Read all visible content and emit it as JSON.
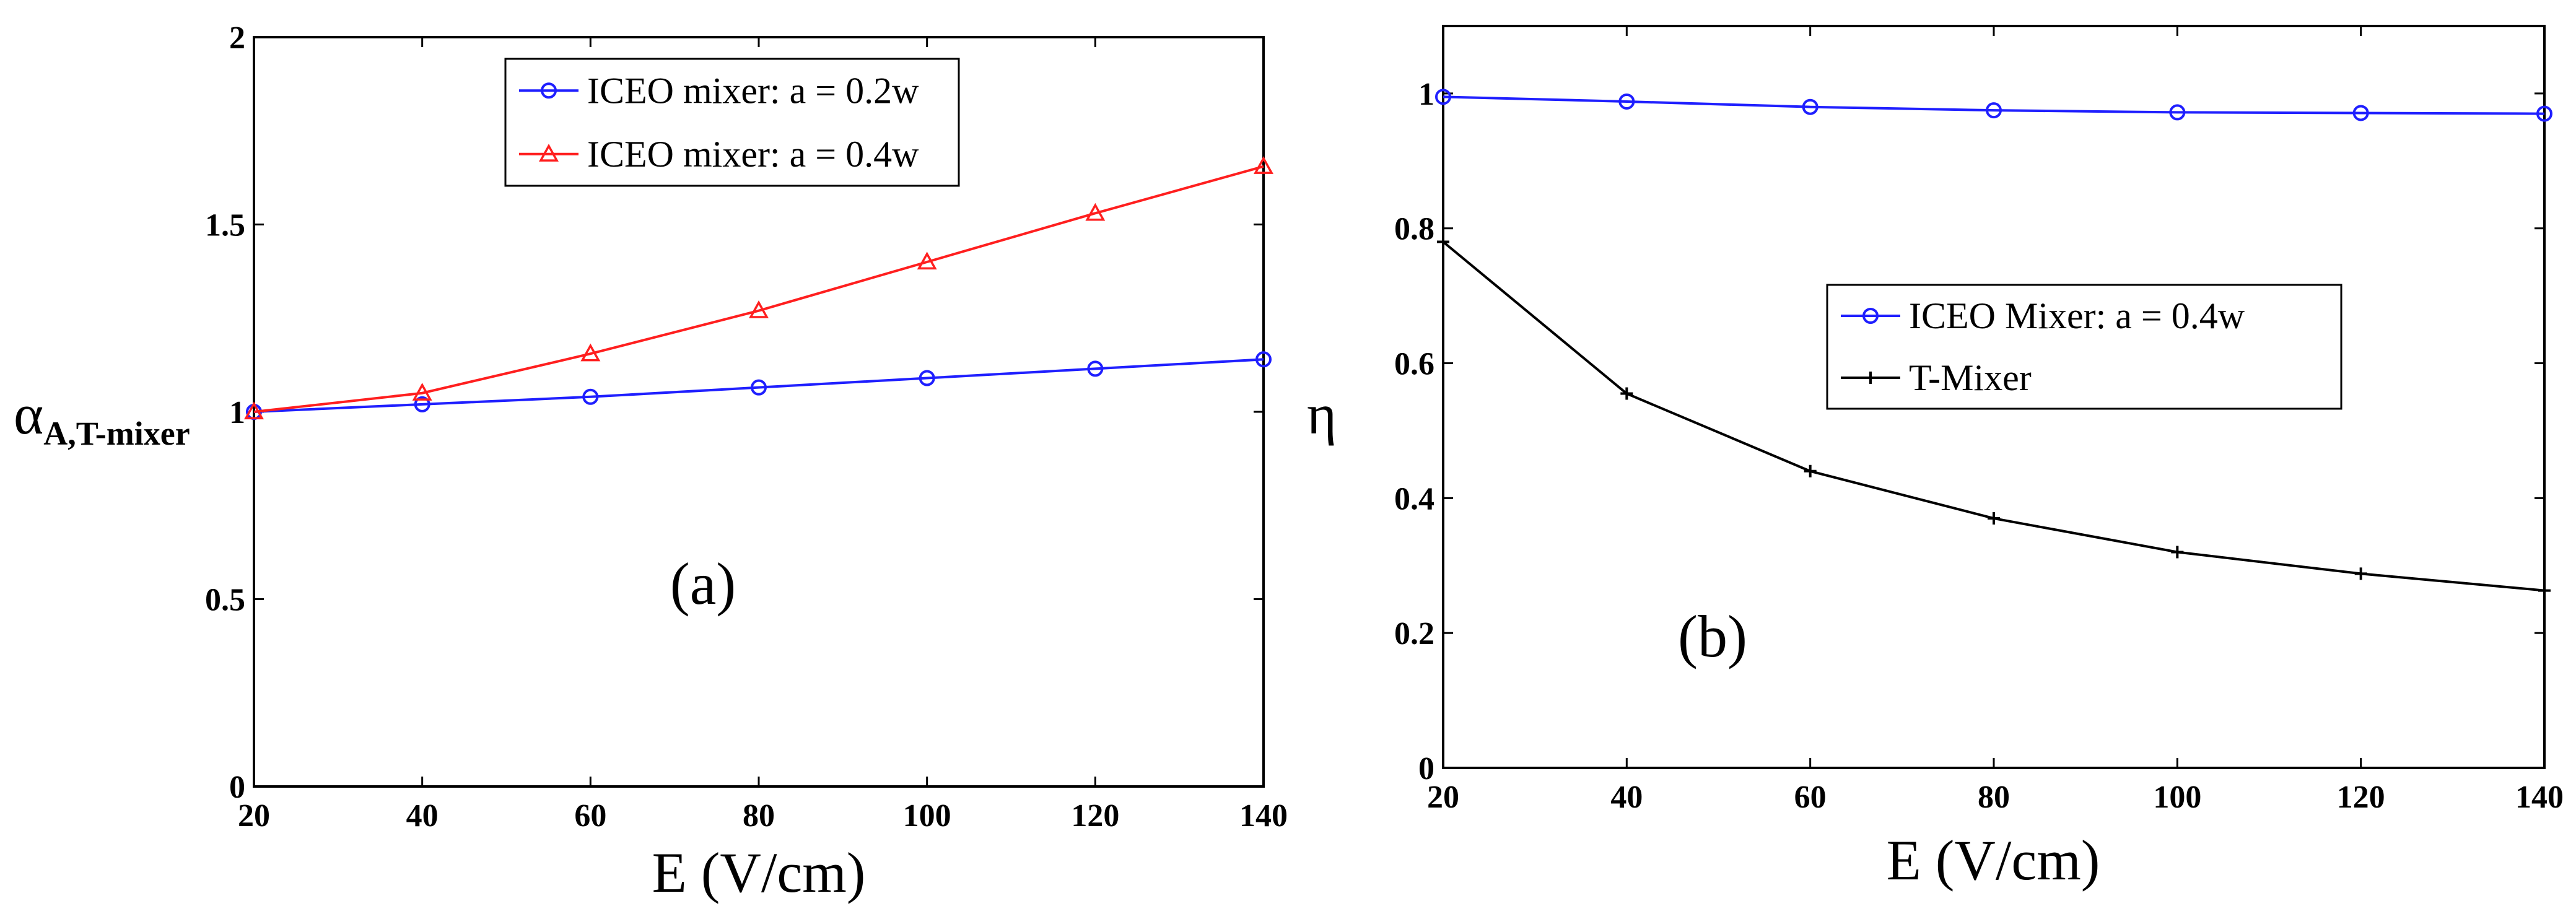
{
  "figure": {
    "alt_label": "Two line charts comparing ICEO mixer and T-mixer performance versus electric field"
  },
  "chart_data": [
    {
      "id": "a",
      "type": "line",
      "title": "",
      "annotation": "(a)",
      "xlabel": "E (V/cm)",
      "ylabel": "α",
      "ylabel_sub": "A,T-mixer",
      "x": [
        20,
        40,
        60,
        80,
        100,
        120,
        140
      ],
      "xlim": [
        20,
        140
      ],
      "ylim": [
        0,
        2
      ],
      "xticks": [
        "20",
        "40",
        "60",
        "80",
        "100",
        "120",
        "140"
      ],
      "yticks": [
        "0",
        "0.5",
        "1",
        "1.5",
        "2"
      ],
      "ytick_values": [
        0,
        0.5,
        1,
        1.5,
        2
      ],
      "grid": false,
      "legend_position": "top-center",
      "series": [
        {
          "name": "ICEO mixer: a = 0.2w",
          "color": "#1f1fff",
          "marker": "circle",
          "values": [
            1.0,
            1.02,
            1.04,
            1.065,
            1.09,
            1.115,
            1.14
          ]
        },
        {
          "name": "ICEO mixer: a = 0.4w",
          "color": "#ff1f1f",
          "marker": "triangle",
          "values": [
            1.0,
            1.05,
            1.155,
            1.27,
            1.4,
            1.53,
            1.655
          ]
        }
      ]
    },
    {
      "id": "b",
      "type": "line",
      "title": "",
      "annotation": "(b)",
      "xlabel": "E (V/cm)",
      "ylabel": "η",
      "ylabel_sub": "",
      "x": [
        20,
        40,
        60,
        80,
        100,
        120,
        140
      ],
      "xlim": [
        20,
        140
      ],
      "ylim": [
        0,
        1.1
      ],
      "xticks": [
        "20",
        "40",
        "60",
        "80",
        "100",
        "120",
        "140"
      ],
      "yticks": [
        "0",
        "0.2",
        "0.4",
        "0.6",
        "0.8",
        "1"
      ],
      "ytick_values": [
        0,
        0.2,
        0.4,
        0.6,
        0.8,
        1
      ],
      "grid": false,
      "legend_position": "center-right",
      "series": [
        {
          "name": "ICEO Mixer: a = 0.4w",
          "color": "#1f1fff",
          "marker": "circle",
          "values": [
            0.995,
            0.988,
            0.98,
            0.975,
            0.972,
            0.971,
            0.97
          ]
        },
        {
          "name": "T-Mixer",
          "color": "#000000",
          "marker": "plus",
          "values": [
            0.78,
            0.555,
            0.44,
            0.37,
            0.32,
            0.288,
            0.263
          ]
        }
      ]
    }
  ]
}
